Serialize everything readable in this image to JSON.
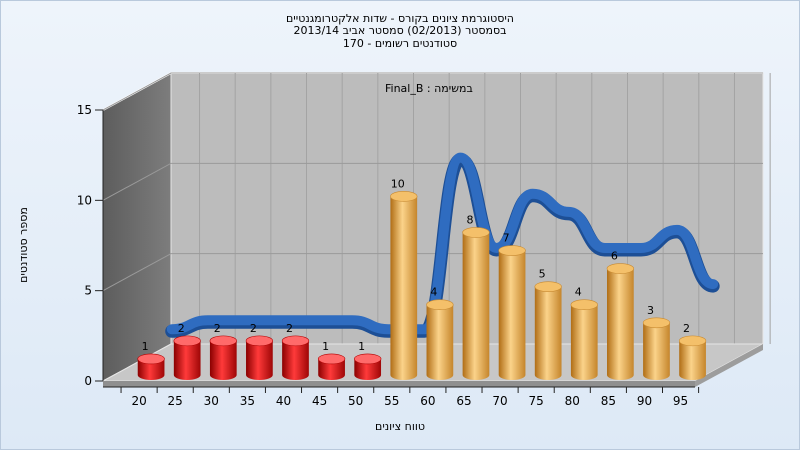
{
  "chart_data": {
    "type": "bar",
    "title": "היסטוגרמת ציונים בקורס - שדות אלקטרומגנטיים",
    "subtitle_lines": [
      "בסמסטר  (02/2013)  סמסטר אביב 2013/14",
      "סטודנטים רשומים - 170"
    ],
    "annotation": "Final_B : במשימה",
    "xlabel": "טווח ציונים",
    "ylabel": "מספר סטודנטים",
    "categories": [
      "20",
      "25",
      "30",
      "35",
      "40",
      "45",
      "50",
      "55",
      "60",
      "65",
      "70",
      "75",
      "80",
      "85",
      "90",
      "95"
    ],
    "values": [
      1,
      2,
      2,
      2,
      2,
      1,
      1,
      10,
      4,
      8,
      7,
      5,
      4,
      6,
      3,
      2
    ],
    "value_labels": [
      "1",
      "2",
      "2",
      "2",
      "2",
      "1",
      "1",
      "10",
      "4",
      "8",
      "7",
      "5",
      "4",
      "6",
      "3",
      "2"
    ],
    "bar_groups": [
      "fail",
      "fail",
      "fail",
      "fail",
      "fail",
      "fail",
      "fail",
      "pass",
      "pass",
      "pass",
      "pass",
      "pass",
      "pass",
      "pass",
      "pass",
      "pass"
    ],
    "trend_line": [
      1.5,
      2,
      2,
      2,
      2,
      2,
      1.5,
      1.5,
      11,
      6,
      9,
      8,
      6,
      6,
      7,
      4
    ],
    "x_ticks": [
      "20",
      "25",
      "30",
      "35",
      "40",
      "45",
      "50",
      "55",
      "60",
      "65",
      "70",
      "75",
      "80",
      "85",
      "90",
      "95"
    ],
    "y_ticks": [
      "0",
      "5",
      "10",
      "15"
    ],
    "ylim": [
      0,
      15
    ],
    "grid": true,
    "colors": {
      "fail": "#e01414",
      "pass": "#eca744",
      "trend": "#2f6cc0",
      "back_wall": "#bcbcbc",
      "side_wall": "#7d7d7d",
      "floor": "#c7c7c7"
    }
  }
}
